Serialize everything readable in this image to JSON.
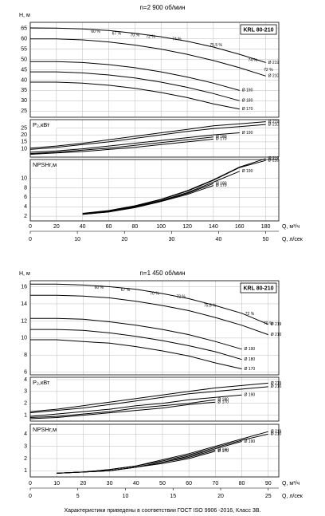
{
  "chart_data": [
    {
      "type": "line",
      "title": "n=2 900 об/мин",
      "model": "KRL 80-210",
      "grid": true,
      "x_label": "Q, м³/ч",
      "x2_label": "Q, л/сек",
      "xlim": [
        0,
        190
      ],
      "xticks": [
        0,
        20,
        40,
        60,
        80,
        100,
        120,
        140,
        160,
        180
      ],
      "x2lim": [
        0,
        52.78
      ],
      "x2ticks": [
        0,
        10,
        20,
        30,
        40,
        50
      ],
      "x": [
        0,
        20,
        40,
        60,
        80,
        100,
        120,
        140,
        160,
        180
      ],
      "panels": [
        {
          "ylabel": "H, м",
          "ylim": [
            22,
            68
          ],
          "yticks": [
            25,
            30,
            35,
            40,
            45,
            50,
            55,
            60,
            65
          ],
          "series": [
            {
              "name": "Ø 219",
              "color": "#000000",
              "values": [
                65.3,
                65.2,
                64.8,
                64,
                62.7,
                61,
                58.8,
                56,
                52.5,
                48.5
              ]
            },
            {
              "name": "Ø 210",
              "color": "#000000",
              "values": [
                60,
                60,
                59.5,
                58.5,
                57,
                55,
                52.5,
                49.5,
                46,
                42
              ]
            },
            {
              "name": "Ø 190",
              "color": "#000000",
              "values": [
                49,
                49,
                48.5,
                47.5,
                46,
                44,
                41.5,
                38.5,
                35,
                null
              ]
            },
            {
              "name": "Ø 180",
              "color": "#000000",
              "values": [
                44,
                44,
                43.5,
                42.5,
                41,
                39,
                36.5,
                33.5,
                30,
                null
              ]
            },
            {
              "name": "Ø 170",
              "color": "#000000",
              "values": [
                39,
                39,
                38.5,
                37.5,
                36,
                34,
                31.5,
                28.5,
                26,
                null
              ]
            }
          ],
          "annotations": [
            {
              "text": "60 %",
              "x": 50,
              "y": 63.5
            },
            {
              "text": "67 %",
              "x": 66,
              "y": 62.5
            },
            {
              "text": "70 %",
              "x": 80,
              "y": 61.8
            },
            {
              "text": "72 %",
              "x": 92,
              "y": 61
            },
            {
              "text": "74 %",
              "x": 112,
              "y": 59.8
            },
            {
              "text": "75,5 %",
              "x": 142,
              "y": 57
            },
            {
              "text": "74 %",
              "x": 170,
              "y": 49.5
            },
            {
              "text": "72 %",
              "x": 182,
              "y": 45
            }
          ]
        },
        {
          "ylabel": "P₂,кВт",
          "ylim": [
            4,
            31
          ],
          "yticks": [
            10,
            15,
            20,
            25
          ],
          "series": [
            {
              "name": "Ø 219",
              "color": "#000000",
              "values": [
                10.5,
                12,
                14,
                16.5,
                19,
                21.5,
                24,
                26.5,
                28,
                29.5
              ]
            },
            {
              "name": "Ø 210",
              "color": "#000000",
              "values": [
                9.5,
                11,
                13,
                15,
                17.5,
                20,
                22.5,
                24.5,
                26,
                27.5
              ]
            },
            {
              "name": "Ø 190",
              "color": "#000000",
              "values": [
                7.5,
                8.5,
                10,
                12,
                14,
                16,
                18,
                20,
                21.5,
                null
              ]
            },
            {
              "name": "Ø 180",
              "color": "#000000",
              "values": [
                6.5,
                7.5,
                9,
                10.5,
                12.5,
                14.5,
                16.5,
                18.5,
                null,
                null
              ]
            },
            {
              "name": "Ø 170",
              "color": "#000000",
              "values": [
                6,
                7,
                8,
                9.5,
                11,
                13,
                15,
                17,
                null,
                null
              ]
            }
          ]
        },
        {
          "ylabel": "NPSHr,м",
          "ylim": [
            1,
            14
          ],
          "yticks": [
            2,
            4,
            6,
            8,
            10
          ],
          "series": [
            {
              "name": "Ø 219",
              "color": "#000000",
              "values": [
                null,
                null,
                2.6,
                3.2,
                4.2,
                5.6,
                7.4,
                9.7,
                12.4,
                14.2
              ]
            },
            {
              "name": "Ø 210",
              "color": "#000000",
              "values": [
                null,
                null,
                2.5,
                3.1,
                4.1,
                5.5,
                7.3,
                9.6,
                12.3,
                13.8
              ]
            },
            {
              "name": "Ø 190",
              "color": "#000000",
              "values": [
                null,
                null,
                2.5,
                3,
                4,
                5.3,
                7,
                9.2,
                11.5,
                null
              ]
            },
            {
              "name": "Ø 180",
              "color": "#000000",
              "values": [
                null,
                null,
                2.4,
                2.9,
                3.9,
                5.2,
                6.8,
                8.9,
                null,
                null
              ]
            },
            {
              "name": "Ø 170",
              "color": "#000000",
              "values": [
                null,
                null,
                2.4,
                2.9,
                3.8,
                5.1,
                6.6,
                8.5,
                null,
                null
              ]
            }
          ]
        }
      ]
    },
    {
      "type": "line",
      "title": "n=1 450 об/мин",
      "model": "KRL 80-210",
      "grid": true,
      "x_label": "Q, м³/ч",
      "x2_label": "Q, л/сек",
      "xlim": [
        0,
        94
      ],
      "xticks": [
        0,
        10,
        20,
        30,
        40,
        50,
        60,
        70,
        80,
        90
      ],
      "x2lim": [
        0,
        26.11
      ],
      "x2ticks": [
        0,
        5,
        10,
        15,
        20,
        25
      ],
      "x": [
        0,
        10,
        20,
        30,
        40,
        50,
        60,
        70,
        80,
        90
      ],
      "panels": [
        {
          "ylabel": "H, м",
          "ylim": [
            5.7,
            16.7
          ],
          "yticks": [
            6,
            8,
            10,
            12,
            14,
            16
          ],
          "series": [
            {
              "name": "Ø 219",
              "color": "#000000",
              "values": [
                16.3,
                16.3,
                16.2,
                16,
                15.7,
                15.2,
                14.6,
                13.8,
                12.9,
                11.6
              ]
            },
            {
              "name": "Ø 210",
              "color": "#000000",
              "values": [
                15,
                15,
                14.9,
                14.7,
                14.3,
                13.8,
                13.2,
                12.4,
                11.5,
                10.4
              ]
            },
            {
              "name": "Ø 190",
              "color": "#000000",
              "values": [
                12.3,
                12.3,
                12.2,
                11.9,
                11.5,
                11,
                10.4,
                9.6,
                8.7,
                null
              ]
            },
            {
              "name": "Ø 180",
              "color": "#000000",
              "values": [
                11,
                11,
                10.9,
                10.6,
                10.2,
                9.7,
                9.1,
                8.4,
                7.5,
                null
              ]
            },
            {
              "name": "Ø 170",
              "color": "#000000",
              "values": [
                9.8,
                9.8,
                9.6,
                9.4,
                9,
                8.5,
                7.9,
                7.1,
                6.4,
                null
              ]
            }
          ],
          "annotations": [
            {
              "text": "60 %",
              "x": 26,
              "y": 15.9
            },
            {
              "text": "67 %",
              "x": 36,
              "y": 15.6
            },
            {
              "text": "70 %",
              "x": 47,
              "y": 15.2
            },
            {
              "text": "72 %",
              "x": 57,
              "y": 14.8
            },
            {
              "text": "75,5 %",
              "x": 68,
              "y": 13.8
            },
            {
              "text": "72 %",
              "x": 83,
              "y": 12.8
            },
            {
              "text": "70 %",
              "x": 90,
              "y": 11.7
            }
          ]
        },
        {
          "ylabel": "P₂,кВт",
          "ylim": [
            0.5,
            4.2
          ],
          "yticks": [
            1,
            2,
            3,
            4
          ],
          "series": [
            {
              "name": "Ø 219",
              "color": "#000000",
              "values": [
                1.3,
                1.5,
                1.8,
                2.1,
                2.4,
                2.7,
                3,
                3.3,
                3.5,
                3.7
              ]
            },
            {
              "name": "Ø 210",
              "color": "#000000",
              "values": [
                1.2,
                1.4,
                1.6,
                1.9,
                2.2,
                2.5,
                2.8,
                3,
                3.2,
                3.4
              ]
            },
            {
              "name": "Ø 190",
              "color": "#000000",
              "values": [
                0.9,
                1.1,
                1.3,
                1.5,
                1.8,
                2,
                2.3,
                2.5,
                2.7,
                null
              ]
            },
            {
              "name": "Ø 180",
              "color": "#000000",
              "values": [
                0.8,
                0.9,
                1.1,
                1.3,
                1.6,
                1.8,
                2,
                2.3,
                null,
                null
              ]
            },
            {
              "name": "Ø 170",
              "color": "#000000",
              "values": [
                0.7,
                0.8,
                1,
                1.2,
                1.4,
                1.6,
                1.9,
                2.1,
                null,
                null
              ]
            }
          ]
        },
        {
          "ylabel": "NPSHr,м",
          "ylim": [
            0.5,
            4.8
          ],
          "yticks": [
            1,
            2,
            3,
            4
          ],
          "series": [
            {
              "name": "Ø 219",
              "color": "#000000",
              "values": [
                null,
                0.8,
                0.9,
                1.1,
                1.4,
                1.9,
                2.4,
                3,
                3.6,
                4.2
              ]
            },
            {
              "name": "Ø 210",
              "color": "#000000",
              "values": [
                null,
                0.8,
                0.9,
                1.1,
                1.4,
                1.8,
                2.3,
                2.9,
                3.5,
                4
              ]
            },
            {
              "name": "Ø 190",
              "color": "#000000",
              "values": [
                null,
                0.8,
                0.9,
                1,
                1.3,
                1.7,
                2.2,
                2.8,
                3.4,
                null
              ]
            },
            {
              "name": "Ø 180",
              "color": "#000000",
              "values": [
                null,
                0.8,
                0.9,
                1,
                1.3,
                1.7,
                2.1,
                2.7,
                null,
                null
              ]
            },
            {
              "name": "Ø 170",
              "color": "#000000",
              "values": [
                null,
                0.8,
                0.9,
                1,
                1.3,
                1.6,
                2,
                2.6,
                null,
                null
              ]
            }
          ]
        }
      ]
    }
  ],
  "footer": "Характеристики приведены в соответствии  ГОСТ ISO 9906 -2016, Класс 3В."
}
